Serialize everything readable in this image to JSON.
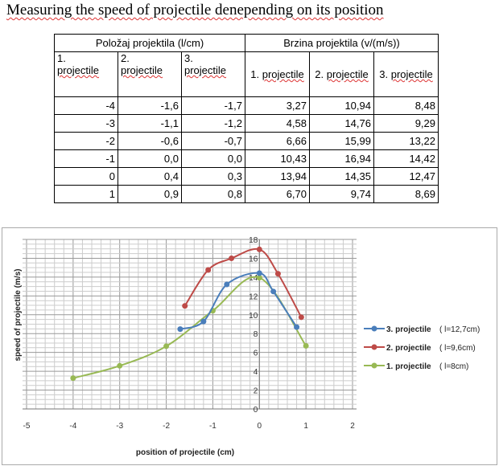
{
  "title": "Measuring the speed of projectile denepending on its position",
  "table": {
    "group_headers": [
      "Položaj projektila (l/cm)",
      "Brzina projektila (v/(m/s))"
    ],
    "position_headers": [
      [
        "1.",
        "projectile"
      ],
      [
        "2.",
        "projectile"
      ],
      [
        "3.",
        "projectile"
      ]
    ],
    "speed_headers": [
      [
        "1.",
        "projectile"
      ],
      [
        "2.",
        "projectile"
      ],
      [
        "3.",
        "projectile"
      ]
    ],
    "rows": [
      [
        "-4",
        "-1,6",
        "-1,7",
        "3,27",
        "10,94",
        "8,48"
      ],
      [
        "-3",
        "-1,1",
        "-1,2",
        "4,58",
        "14,76",
        "9,29"
      ],
      [
        "-2",
        "-0,6",
        "-0,7",
        "6,66",
        "15,99",
        "13,22"
      ],
      [
        "-1",
        "0,0",
        "0,0",
        "10,43",
        "16,94",
        "14,42"
      ],
      [
        "0",
        "0,4",
        "0,3",
        "13,94",
        "14,35",
        "12,47"
      ],
      [
        "1",
        "0,9",
        "0,8",
        "6,70",
        "9,74",
        "8,69"
      ]
    ]
  },
  "chart_data": {
    "type": "line",
    "xlabel": "position of projectile  (cm)",
    "ylabel": "speed of projectile  (m/s)",
    "xlim": [
      -5,
      2
    ],
    "ylim": [
      0,
      18
    ],
    "xticks": [
      "-5",
      "-4",
      "-3",
      "-2",
      "-1",
      "0",
      "1",
      "2"
    ],
    "yticks": [
      "0",
      "2",
      "4",
      "6",
      "8",
      "10",
      "12",
      "14",
      "16",
      "18"
    ],
    "grid": true,
    "legend": "right",
    "series": [
      {
        "name": "3. projectile",
        "note": "( l=12,7cm)",
        "color": "#4a7ebb",
        "x": [
          -1.7,
          -1.2,
          -0.7,
          0,
          0.3,
          0.8
        ],
        "y": [
          8.48,
          9.29,
          13.22,
          14.42,
          12.47,
          8.69
        ]
      },
      {
        "name": "2. projectile",
        "note": "( l=9,6cm)",
        "color": "#be4b48",
        "x": [
          -1.6,
          -1.1,
          -0.6,
          0,
          0.4,
          0.9
        ],
        "y": [
          10.94,
          14.76,
          15.99,
          16.94,
          14.35,
          9.74
        ]
      },
      {
        "name": "1. projectile",
        "note": "( l=8cm)",
        "color": "#98b954",
        "x": [
          -4,
          -3,
          -2,
          -1,
          0,
          1
        ],
        "y": [
          3.27,
          4.58,
          6.66,
          10.43,
          13.94,
          6.7
        ]
      }
    ]
  }
}
